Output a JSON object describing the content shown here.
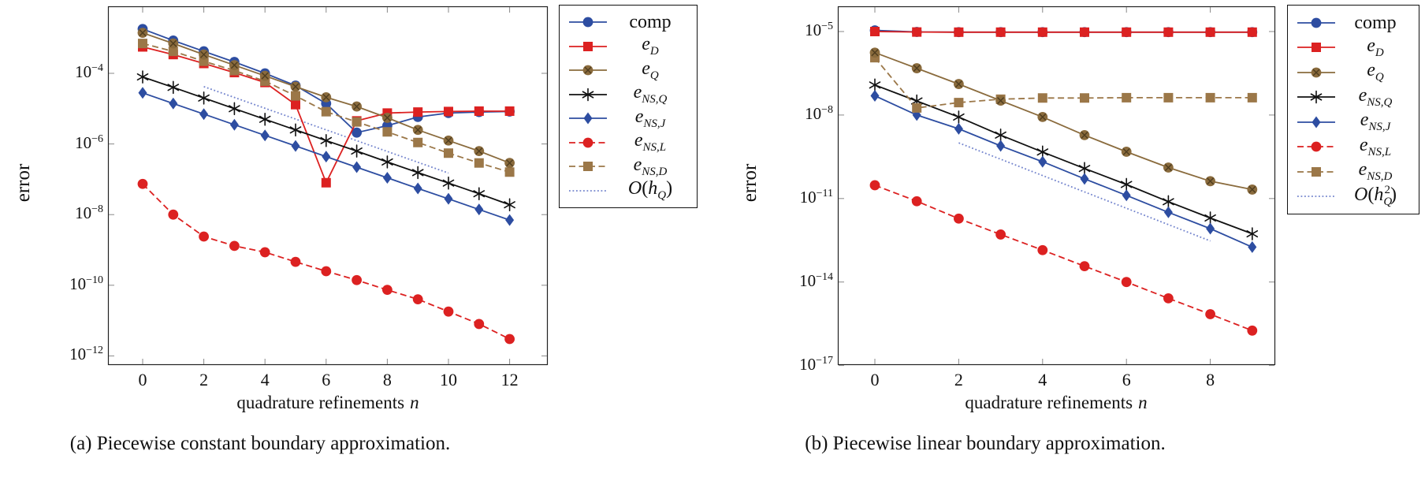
{
  "colors": {
    "blue": "#2d4da1",
    "red": "#dc2121",
    "olive": "#8a6b3d",
    "brown": "#9b7748",
    "black": "#111111",
    "guide_blue": "#7384cd",
    "axis": "#222222",
    "tick": "#888888"
  },
  "chart_data": [
    {
      "id": "a",
      "type": "line",
      "title": "(a) Piecewise constant boundary approximation.",
      "ylabel": "error",
      "xlabel_text": "quadrature refinements",
      "xlabel_var": "n",
      "x": [
        0,
        1,
        2,
        3,
        4,
        5,
        6,
        7,
        8,
        9,
        10,
        11,
        12
      ],
      "x_ticks": [
        0,
        2,
        4,
        6,
        8,
        10,
        12
      ],
      "y_tick_exponents": [
        -4,
        -6,
        -8,
        -10,
        -12
      ],
      "xlim": [
        -1.13,
        13.25
      ],
      "ylim_exponents": [
        -12.26,
        -2.1
      ],
      "grid": false,
      "legend_position": "outside-right",
      "series": [
        {
          "name": "comp",
          "color": "#2d4da1",
          "marker": "circle",
          "line": "solid",
          "z": 2,
          "values": [
            0.0018,
            0.00085,
            0.00042,
            0.00021,
            0.0001,
            4.5e-05,
            1.4e-05,
            2.1e-06,
            3.3e-06,
            5.8e-06,
            7.5e-06,
            8e-06,
            8.3e-06
          ],
          "label": [
            {
              "t": "comp"
            }
          ]
        },
        {
          "name": "e_D",
          "color": "#dc2121",
          "marker": "square",
          "line": "solid",
          "z": 3,
          "values": [
            0.00056,
            0.00034,
            0.00019,
            0.000105,
            5.5e-05,
            1.3e-05,
            8e-08,
            4.5e-06,
            7.5e-06,
            8e-06,
            8.3e-06,
            8.5e-06,
            8.5e-06
          ],
          "label": [
            {
              "t": "e",
              "i": 1
            },
            {
              "t": "D",
              "s": "sub",
              "i": 1
            }
          ]
        },
        {
          "name": "e_Q",
          "color": "#8a6b3d",
          "marker": "circle-x",
          "line": "solid",
          "z": 8,
          "values": [
            0.0014,
            0.0007,
            0.00034,
            0.00017,
            8.5e-05,
            4.2e-05,
            2.1e-05,
            1.15e-05,
            5.5e-06,
            2.5e-06,
            1.25e-06,
            6.3e-07,
            2.9e-07
          ],
          "label": [
            {
              "t": "e",
              "i": 1
            },
            {
              "t": "Q",
              "s": "sub",
              "i": 1
            }
          ]
        },
        {
          "name": "e_NS_Q",
          "color": "#111111",
          "marker": "star",
          "line": "solid",
          "z": 4,
          "values": [
            7.9e-05,
            4e-05,
            2e-05,
            1e-05,
            5e-06,
            2.5e-06,
            1.25e-06,
            6.3e-07,
            3.1e-07,
            1.55e-07,
            7.8e-08,
            3.9e-08,
            1.9e-08
          ],
          "label": [
            {
              "t": "e",
              "i": 1
            },
            {
              "t": "NS,Q",
              "s": "sub",
              "i": 1
            }
          ]
        },
        {
          "name": "e_NS_J",
          "color": "#2d4da1",
          "marker": "diamond",
          "line": "solid",
          "z": 5,
          "values": [
            2.8e-05,
            1.4e-05,
            7e-06,
            3.5e-06,
            1.75e-06,
            8.8e-07,
            4.4e-07,
            2.2e-07,
            1.1e-07,
            5.5e-08,
            2.8e-08,
            1.4e-08,
            7e-09
          ],
          "label": [
            {
              "t": "e",
              "i": 1
            },
            {
              "t": "NS,J",
              "s": "sub",
              "i": 1
            }
          ]
        },
        {
          "name": "e_NS_L",
          "color": "#dc2121",
          "marker": "circle",
          "line": "dashed",
          "z": 6,
          "values": [
            7.4e-08,
            1e-08,
            2.4e-09,
            1.3e-09,
            8.6e-10,
            4.6e-10,
            2.5e-10,
            1.4e-10,
            7.4e-11,
            4e-11,
            1.8e-11,
            8e-12,
            3e-12
          ],
          "label": [
            {
              "t": "e",
              "i": 1
            },
            {
              "t": "NS,L",
              "s": "sub",
              "i": 1
            }
          ]
        },
        {
          "name": "e_NS_D",
          "color": "#9b7748",
          "marker": "square",
          "line": "dashed",
          "z": 7,
          "values": [
            0.0007,
            0.00042,
            0.00022,
            0.00012,
            6e-05,
            2.3e-05,
            8.2e-06,
            4.2e-06,
            2.2e-06,
            1.1e-06,
            5.5e-07,
            2.9e-07,
            1.6e-07
          ],
          "label": [
            {
              "t": "e",
              "i": 1
            },
            {
              "t": "NS,D",
              "s": "sub",
              "i": 1
            }
          ]
        },
        {
          "name": "O_hQ",
          "color": "#7384cd",
          "marker": "none",
          "line": "dotted",
          "z": 1,
          "x_override": [
            2,
            10
          ],
          "values": [
            4.2e-05,
            1.5e-07
          ],
          "label": [
            {
              "t": "O",
              "i": 1
            },
            {
              "t": "("
            },
            {
              "t": "h",
              "i": 1
            },
            {
              "t": "Q",
              "s": "sub",
              "i": 1
            },
            {
              "t": ")"
            }
          ]
        }
      ]
    },
    {
      "id": "b",
      "type": "line",
      "title": "(b) Piecewise linear boundary approximation.",
      "ylabel": "error",
      "xlabel_text": "quadrature refinements",
      "xlabel_var": "n",
      "x": [
        0,
        1,
        2,
        3,
        4,
        5,
        6,
        7,
        8,
        9
      ],
      "x_ticks": [
        0,
        2,
        4,
        6,
        8
      ],
      "y_tick_exponents": [
        -5,
        -8,
        -11,
        -14,
        -17
      ],
      "xlim": [
        -0.88,
        9.55
      ],
      "ylim_exponents": [
        -16.98,
        -4.09
      ],
      "grid": false,
      "legend_position": "outside-right",
      "series": [
        {
          "name": "comp",
          "color": "#2d4da1",
          "marker": "circle",
          "line": "solid",
          "z": 2,
          "values": [
            1.1e-05,
            9.7e-06,
            9.5e-06,
            9.5e-06,
            9.5e-06,
            9.5e-06,
            9.5e-06,
            9.5e-06,
            9.5e-06,
            9.5e-06
          ],
          "label": [
            {
              "t": "comp"
            }
          ]
        },
        {
          "name": "e_D",
          "color": "#dc2121",
          "marker": "square",
          "line": "solid",
          "z": 3,
          "values": [
            1e-05,
            9.6e-06,
            9.5e-06,
            9.5e-06,
            9.5e-06,
            9.5e-06,
            9.5e-06,
            9.5e-06,
            9.5e-06,
            9.5e-06
          ],
          "label": [
            {
              "t": "e",
              "i": 1
            },
            {
              "t": "D",
              "s": "sub",
              "i": 1
            }
          ]
        },
        {
          "name": "e_Q",
          "color": "#8a6b3d",
          "marker": "circle-x",
          "line": "solid",
          "z": 8,
          "values": [
            1.75e-06,
            4.8e-07,
            1.3e-07,
            3.3e-08,
            8.5e-09,
            1.9e-09,
            4.8e-10,
            1.3e-10,
            4.2e-11,
            2.1e-11
          ],
          "label": [
            {
              "t": "e",
              "i": 1
            },
            {
              "t": "Q",
              "s": "sub",
              "i": 1
            }
          ]
        },
        {
          "name": "e_NS_Q",
          "color": "#111111",
          "marker": "star",
          "line": "solid",
          "z": 4,
          "values": [
            1.2e-07,
            3.2e-08,
            8.5e-09,
            1.9e-09,
            4.7e-10,
            1.2e-10,
            3.2e-11,
            7.7e-12,
            2e-12,
            5.4e-13
          ],
          "label": [
            {
              "t": "e",
              "i": 1
            },
            {
              "t": "NS,Q",
              "s": "sub",
              "i": 1
            }
          ]
        },
        {
          "name": "e_NS_J",
          "color": "#2d4da1",
          "marker": "diamond",
          "line": "solid",
          "z": 5,
          "values": [
            4.9e-08,
            1e-08,
            3.2e-09,
            7.8e-10,
            2.1e-10,
            5.1e-11,
            1.3e-11,
            3.2e-12,
            8.3e-13,
            1.8e-13
          ],
          "label": [
            {
              "t": "e",
              "i": 1
            },
            {
              "t": "NS,J",
              "s": "sub",
              "i": 1
            }
          ]
        },
        {
          "name": "e_NS_L",
          "color": "#dc2121",
          "marker": "circle",
          "line": "dashed",
          "z": 6,
          "values": [
            3e-11,
            8e-12,
            1.9e-12,
            5.1e-13,
            1.4e-13,
            3.7e-14,
            1e-14,
            2.6e-15,
            7e-16,
            1.8e-16
          ],
          "label": [
            {
              "t": "e",
              "i": 1
            },
            {
              "t": "NS,L",
              "s": "sub",
              "i": 1
            }
          ]
        },
        {
          "name": "e_NS_D",
          "color": "#9b7748",
          "marker": "square",
          "line": "dashed",
          "z": 7,
          "values": [
            1.15e-06,
            1.8e-08,
            2.8e-08,
            3.7e-08,
            4.1e-08,
            4.1e-08,
            4.2e-08,
            4.2e-08,
            4.2e-08,
            4.2e-08
          ],
          "label": [
            {
              "t": "e",
              "i": 1
            },
            {
              "t": "NS,D",
              "s": "sub",
              "i": 1
            }
          ]
        },
        {
          "name": "O_hQ2",
          "color": "#7384cd",
          "marker": "none",
          "line": "dotted",
          "z": 1,
          "x_override": [
            2,
            8
          ],
          "values": [
            1e-09,
            3e-13
          ],
          "label": [
            {
              "t": "O",
              "i": 1
            },
            {
              "t": "("
            },
            {
              "t": "h",
              "i": 1
            },
            {
              "t": "Q",
              "s": "sub",
              "i": 1
            },
            {
              "t": "2",
              "s": "sup",
              "stack": 1
            },
            {
              "t": ")"
            }
          ]
        }
      ]
    }
  ]
}
